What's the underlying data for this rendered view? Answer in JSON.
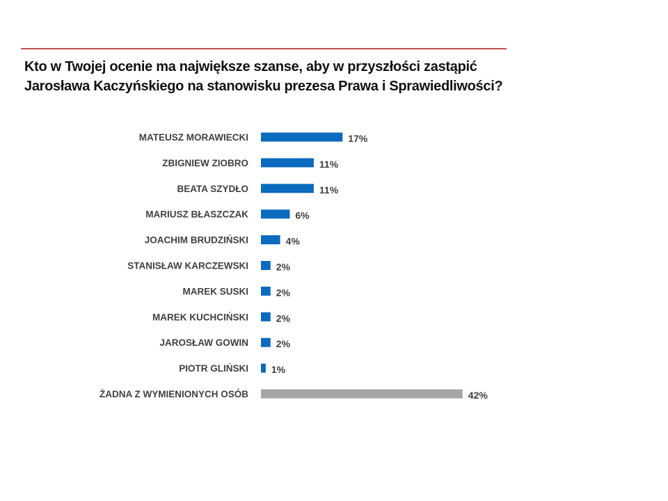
{
  "title_line1": "Kto w Twojej ocenie ma największe szanse, aby w przyszłości zastąpić",
  "title_line2": "Jarosława Kaczyńskiego na stanowisku prezesa Prawa i Sprawiedliwości?",
  "colors": {
    "primary": "#0a6bbf",
    "other": "#a6a6a6",
    "rule": "#c0504d"
  },
  "chart_data": {
    "type": "bar",
    "orientation": "horizontal",
    "title": "Kto w Twojej ocenie ma największe szanse, aby w przyszłości zastąpić Jarosława Kaczyńskiego na stanowisku prezesa Prawa i Sprawiedliwości?",
    "categories": [
      "MATEUSZ MORAWIECKI",
      "ZBIGNIEW ZIOBRO",
      "BEATA SZYDŁO",
      "MARIUSZ BŁASZCZAK",
      "JOACHIM BRUDZIŃSKI",
      "STANISŁAW KARCZEWSKI",
      "MAREK SUSKI",
      "MAREK KUCHCIŃSKI",
      "JAROSŁAW GOWIN",
      "PIOTR GLIŃSKI",
      "ŻADNA Z WYMIENIONYCH OSÓB"
    ],
    "values": [
      17,
      11,
      11,
      6,
      4,
      2,
      2,
      2,
      2,
      1,
      42
    ],
    "value_labels": [
      "17%",
      "11%",
      "11%",
      "6%",
      "4%",
      "2%",
      "2%",
      "2%",
      "2%",
      "1%",
      "42%"
    ],
    "xlabel": "",
    "ylabel": "",
    "xlim": [
      0,
      42
    ],
    "grid": false,
    "legend": "none"
  }
}
